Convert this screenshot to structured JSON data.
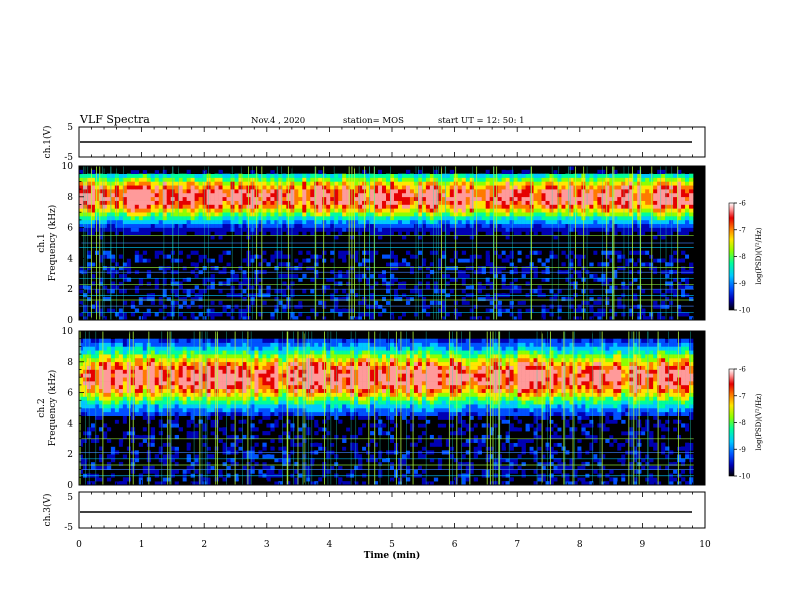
{
  "header": {
    "title": "VLF Spectra",
    "date": "Nov.4  , 2020",
    "station": "station= MOS",
    "start": "start  UT  =   12: 50: 1"
  },
  "chart_data": [
    {
      "type": "line",
      "panel": "ch1-waveform",
      "ylabel": "ch.1(V)",
      "ylim": [
        -5,
        5
      ],
      "yticks": [
        "5",
        "-5"
      ],
      "series": [
        {
          "values": [
            0,
            0,
            0,
            0,
            0,
            0,
            0,
            0,
            0,
            0,
            0
          ]
        }
      ]
    },
    {
      "type": "heatmap",
      "panel": "ch1-spectrogram",
      "ylabel": "ch.1\nFrequency  (kHz)",
      "ylim": [
        0,
        10
      ],
      "yticks": [
        "0",
        "2",
        "4",
        "6",
        "8",
        "10"
      ],
      "xlim": [
        0,
        10
      ],
      "band_center_khz": 8.0,
      "band_halfwidth_khz": 1.8,
      "horizontal_lines_khz": [
        0.5,
        0.9,
        1.3,
        1.6,
        2.0,
        2.3,
        2.7,
        3.1,
        3.4,
        4.7,
        5.0,
        5.5
      ],
      "colorbar": {
        "label": "log(PSD)(V²/Hz)",
        "ticks": [
          "-6",
          "-7",
          "-8",
          "-9",
          "-10"
        ],
        "range": [
          -10,
          -6
        ]
      }
    },
    {
      "type": "heatmap",
      "panel": "ch2-spectrogram",
      "ylabel": "ch.2\nFrequency  (kHz)",
      "ylim": [
        0,
        10
      ],
      "yticks": [
        "0",
        "2",
        "4",
        "6",
        "8",
        "10"
      ],
      "xlim": [
        0,
        10
      ],
      "band_center_khz": 7.0,
      "band_halfwidth_khz": 2.2,
      "horizontal_lines_khz": [
        0.6,
        1.0,
        1.3,
        1.7,
        2.1,
        3.0
      ],
      "colorbar": {
        "label": "log(PSD)(V²/Hz)",
        "ticks": [
          "-6",
          "-7",
          "-8",
          "-9",
          "-10"
        ],
        "range": [
          -10,
          -6
        ]
      }
    },
    {
      "type": "line",
      "panel": "ch3-waveform",
      "ylabel": "ch.3(V)",
      "ylim": [
        -5,
        5
      ],
      "yticks": [
        "5",
        "-5"
      ],
      "series": [
        {
          "values": [
            0,
            0,
            0,
            0,
            0,
            0,
            0,
            0,
            0,
            0,
            0
          ]
        }
      ]
    }
  ],
  "xaxis": {
    "xlabel": "Time  (min)",
    "ticks": [
      "0",
      "1",
      "2",
      "3",
      "4",
      "5",
      "6",
      "7",
      "8",
      "9",
      "10"
    ]
  },
  "colormap": [
    "#000000",
    "#0000b4",
    "#0050ff",
    "#00c8ff",
    "#00ff9a",
    "#8cff00",
    "#ffe600",
    "#ff7a00",
    "#e60000",
    "#ff9a9a",
    "#ffffff"
  ]
}
